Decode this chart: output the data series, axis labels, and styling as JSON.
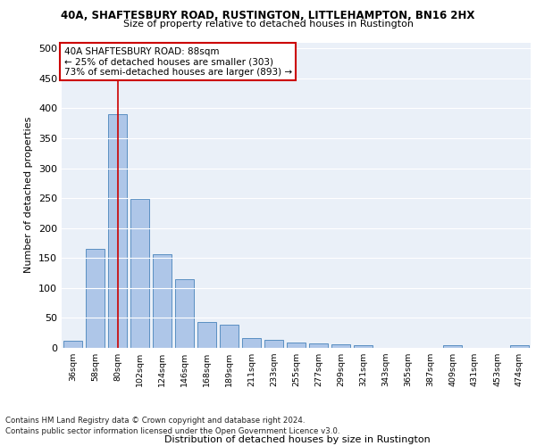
{
  "title1": "40A, SHAFTESBURY ROAD, RUSTINGTON, LITTLEHAMPTON, BN16 2HX",
  "title2": "Size of property relative to detached houses in Rustington",
  "xlabel": "Distribution of detached houses by size in Rustington",
  "ylabel": "Number of detached properties",
  "footer1": "Contains HM Land Registry data © Crown copyright and database right 2024.",
  "footer2": "Contains public sector information licensed under the Open Government Licence v3.0.",
  "bar_labels": [
    "36sqm",
    "58sqm",
    "80sqm",
    "102sqm",
    "124sqm",
    "146sqm",
    "168sqm",
    "189sqm",
    "211sqm",
    "233sqm",
    "255sqm",
    "277sqm",
    "299sqm",
    "321sqm",
    "343sqm",
    "365sqm",
    "387sqm",
    "409sqm",
    "431sqm",
    "453sqm",
    "474sqm"
  ],
  "bar_values": [
    12,
    165,
    390,
    248,
    157,
    114,
    43,
    39,
    17,
    14,
    9,
    8,
    6,
    4,
    0,
    0,
    0,
    5,
    0,
    0,
    5
  ],
  "bar_color": "#aec6e8",
  "bar_edge_color": "#5a8fc2",
  "bg_color": "#eaf0f8",
  "grid_color": "#ffffff",
  "annotation_text": "40A SHAFTESBURY ROAD: 88sqm\n← 25% of detached houses are smaller (303)\n73% of semi-detached houses are larger (893) →",
  "annotation_box_color": "#ffffff",
  "annotation_box_edge": "#cc0000",
  "vline_x_index": 2,
  "vline_color": "#cc0000",
  "ylim": [
    0,
    510
  ],
  "yticks": [
    0,
    50,
    100,
    150,
    200,
    250,
    300,
    350,
    400,
    450,
    500
  ]
}
